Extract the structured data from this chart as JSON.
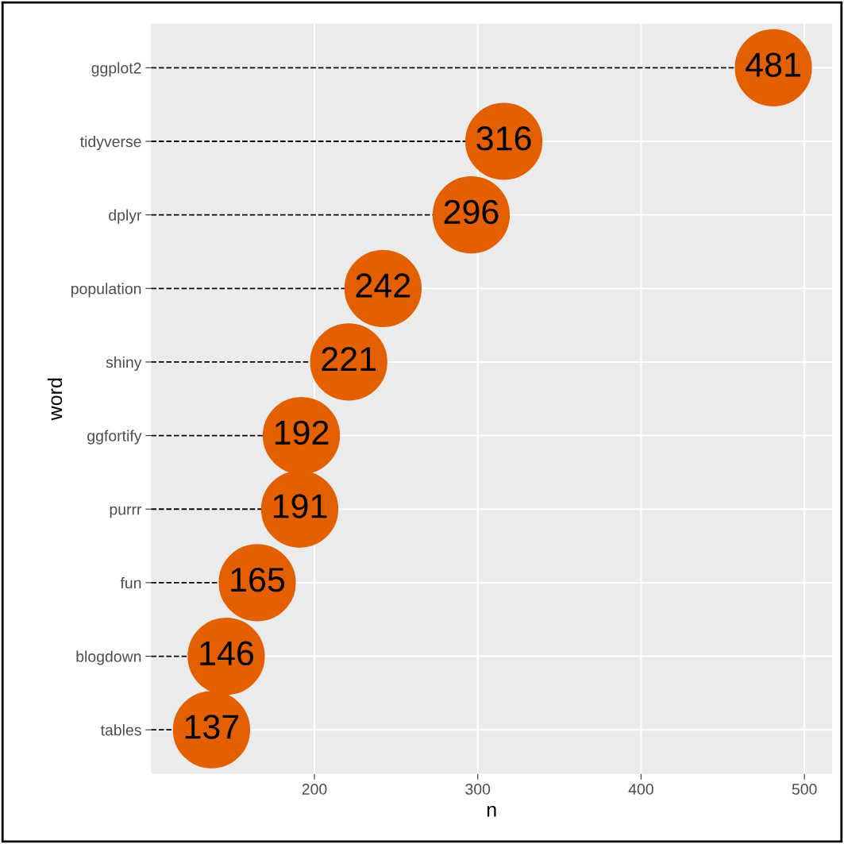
{
  "chart_data": {
    "type": "lollipop",
    "orientation": "horizontal",
    "xlabel": "n",
    "ylabel": "word",
    "categories": [
      "ggplot2",
      "tidyverse",
      "dplyr",
      "population",
      "shiny",
      "ggfortify",
      "purrr",
      "fun",
      "blogdown",
      "tables"
    ],
    "values": [
      481,
      316,
      296,
      242,
      221,
      192,
      191,
      165,
      146,
      137
    ],
    "color": "#e35f00",
    "data_labels": true,
    "line_style": "dashed",
    "marker": "circle",
    "xlim": [
      100,
      517
    ],
    "xticks": [
      200,
      300,
      400,
      500
    ],
    "grid": true
  }
}
